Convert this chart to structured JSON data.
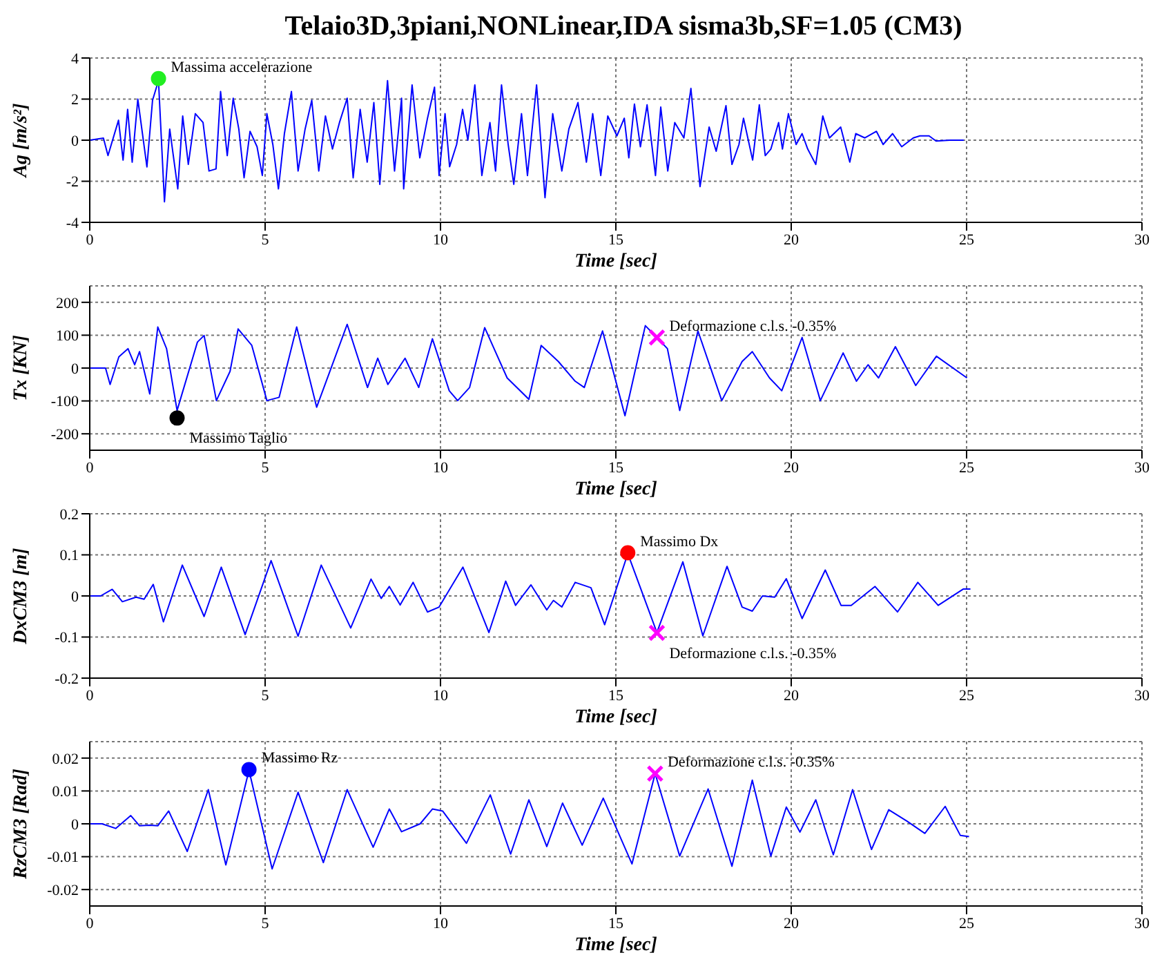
{
  "chart_data": [
    {
      "type": "line",
      "title": "Telaio3D,3piani,NONLinear,IDA sisma3b,SF=1.05 (CM3)",
      "xlabel": "Time [sec]",
      "ylabel": "Ag [m/s²]",
      "xlim": [
        0,
        30
      ],
      "xticks": [
        0,
        5,
        10,
        15,
        20,
        25,
        30
      ],
      "ylim": [
        -4,
        4
      ],
      "yticks": [
        -4,
        -2,
        0,
        2,
        4
      ],
      "grid": true,
      "series": [
        {
          "type": "line",
          "color": "#0000ff",
          "x": [
            0,
            0.39,
            0.52,
            0.82,
            0.95,
            1.08,
            1.21,
            1.37,
            1.63,
            1.79,
            1.96,
            2.13,
            2.28,
            2.51,
            2.65,
            2.81,
            3.01,
            3.23,
            3.4,
            3.6,
            3.73,
            3.92,
            4.09,
            4.25,
            4.4,
            4.57,
            4.77,
            4.92,
            5.05,
            5.22,
            5.38,
            5.55,
            5.75,
            5.94,
            6.14,
            6.33,
            6.53,
            6.72,
            6.92,
            7.12,
            7.34,
            7.51,
            7.71,
            7.91,
            8.1,
            8.27,
            8.49,
            8.69,
            8.89,
            8.95,
            9.19,
            9.41,
            9.63,
            9.83,
            9.96,
            10.13,
            10.26,
            10.46,
            10.63,
            10.78,
            10.98,
            11.18,
            11.41,
            11.57,
            11.74,
            11.93,
            12.09,
            12.31,
            12.48,
            12.74,
            12.98,
            13.2,
            13.46,
            13.66,
            13.92,
            14.16,
            14.34,
            14.57,
            14.77,
            15.03,
            15.24,
            15.37,
            15.53,
            15.7,
            15.89,
            16.13,
            16.28,
            16.48,
            16.68,
            16.94,
            17.14,
            17.4,
            17.66,
            17.86,
            18.14,
            18.31,
            18.51,
            18.64,
            18.9,
            19.09,
            19.26,
            19.42,
            19.64,
            19.75,
            19.92,
            20.14,
            20.31,
            20.47,
            20.7,
            20.9,
            21.09,
            21.41,
            21.67,
            21.84,
            22.1,
            22.43,
            22.62,
            22.89,
            23.15,
            23.48,
            23.67,
            23.93,
            24.13,
            24.52,
            24.92
          ],
          "values": [
            0,
            0.1,
            -0.75,
            0.97,
            -0.97,
            1.5,
            -1.07,
            2,
            -1.3,
            1.94,
            2.9,
            -3,
            0.54,
            -2.37,
            1.18,
            -1.18,
            1.29,
            0.86,
            -1.5,
            -1.4,
            2.37,
            -0.75,
            2.04,
            0.54,
            -1.83,
            0.43,
            -0.32,
            -1.72,
            1.29,
            -0.21,
            -2.37,
            0.32,
            2.37,
            -1.5,
            0.54,
            1.94,
            -1.5,
            1.18,
            -0.43,
            0.86,
            2.04,
            -1.83,
            1.5,
            -1.07,
            1.83,
            -2.15,
            2.9,
            -1.5,
            2.04,
            -2.37,
            2.69,
            -0.86,
            1.07,
            2.58,
            -1.72,
            1.29,
            -1.29,
            -0.21,
            1.5,
            0,
            2.69,
            -1.72,
            0.86,
            -1.5,
            2.69,
            -0.21,
            -2.15,
            1.29,
            -1.72,
            2.69,
            -2.8,
            1.29,
            -1.5,
            0.54,
            1.83,
            -1.07,
            1.29,
            -1.72,
            1.18,
            0.21,
            1.07,
            -0.86,
            1.76,
            -0.32,
            1.72,
            -1.72,
            1.61,
            -1.5,
            0.86,
            0.11,
            2.52,
            -2.26,
            0.64,
            -0.54,
            1.68,
            -1.18,
            -0.21,
            1.07,
            -0.97,
            1.72,
            -0.75,
            -0.43,
            0.86,
            -0.43,
            1.29,
            -0.21,
            0.32,
            -0.43,
            -1.18,
            1.18,
            0.11,
            0.64,
            -1.07,
            0.32,
            0.11,
            0.43,
            -0.21,
            0.32,
            -0.32,
            0.11,
            0.21,
            0.21,
            -0.04,
            0,
            0
          ]
        },
        {
          "type": "scatter",
          "color": "#22ee22",
          "marker": "circle",
          "x": [
            1.96
          ],
          "values": [
            3
          ]
        }
      ],
      "annotations": [
        {
          "text": "Massima accelerazione",
          "x": 1.96,
          "y": 3
        }
      ]
    },
    {
      "type": "line",
      "xlabel": "Time [sec]",
      "ylabel": "Tx [KN]",
      "xlim": [
        0,
        30
      ],
      "xticks": [
        0,
        5,
        10,
        15,
        20,
        25,
        30
      ],
      "ylim": [
        -250,
        250
      ],
      "yticks": [
        -200,
        -100,
        0,
        100,
        200
      ],
      "grid": true,
      "series": [
        {
          "type": "line",
          "color": "#0000ff",
          "x": [
            0,
            0.45,
            0.58,
            0.83,
            1.09,
            1.28,
            1.42,
            1.71,
            1.94,
            2.19,
            2.49,
            3.07,
            3.26,
            3.61,
            4,
            4.23,
            4.62,
            5.05,
            5.4,
            5.9,
            6.47,
            7.34,
            7.92,
            8.21,
            8.5,
            8.99,
            9.38,
            9.77,
            10.25,
            10.49,
            10.83,
            11.26,
            11.9,
            12.52,
            12.87,
            13.36,
            13.84,
            14.1,
            14.62,
            15.26,
            15.84,
            16.17,
            16.47,
            16.82,
            17.34,
            18.02,
            18.6,
            18.89,
            19.38,
            19.73,
            20.31,
            20.83,
            21.48,
            21.86,
            22.19,
            22.49,
            22.97,
            23.55,
            24.14,
            25.01
          ],
          "values": [
            0,
            0,
            -50,
            34,
            59,
            10,
            50,
            -79,
            125,
            59,
            -129,
            79,
            99,
            -99,
            -10,
            119,
            69,
            -99,
            -89,
            125,
            -119,
            133,
            -59,
            30,
            -50,
            30,
            -59,
            89,
            -69,
            -99,
            -59,
            123,
            -30,
            -95,
            69,
            20,
            -40,
            -59,
            113,
            -145,
            129,
            93,
            59,
            -129,
            113,
            -99,
            20,
            50,
            -30,
            -69,
            93,
            -99,
            46,
            -40,
            10,
            -30,
            65,
            -53,
            36,
            -30
          ]
        },
        {
          "type": "scatter",
          "color": "#000000",
          "marker": "circle",
          "x": [
            2.49
          ],
          "values": [
            -152
          ]
        },
        {
          "type": "scatter",
          "color": "#ff00ff",
          "marker": "cross",
          "x": [
            16.17
          ],
          "values": [
            93
          ]
        }
      ],
      "annotations": [
        {
          "text": "Massimo Taglio",
          "x": 2.49,
          "y": -152
        },
        {
          "text": "Deformazione c.l.s. -0.35%",
          "x": 16.17,
          "y": 93
        }
      ]
    },
    {
      "type": "line",
      "xlabel": "Time [sec]",
      "ylabel": "DxCM3 [m]",
      "xlim": [
        0,
        30
      ],
      "xticks": [
        0,
        5,
        10,
        15,
        20,
        25,
        30
      ],
      "ylim": [
        -0.2,
        0.2
      ],
      "yticks": [
        -0.2,
        -0.1,
        0,
        0.1,
        0.2
      ],
      "grid": true,
      "series": [
        {
          "type": "line",
          "color": "#0000ff",
          "x": [
            0,
            0.31,
            0.64,
            0.93,
            1.32,
            1.55,
            1.81,
            2.1,
            2.64,
            3.26,
            3.75,
            4.43,
            5.17,
            5.94,
            6.6,
            7.44,
            8.02,
            8.31,
            8.54,
            8.85,
            9.22,
            9.63,
            9.96,
            10.64,
            11.38,
            11.86,
            12.14,
            12.58,
            13.03,
            13.22,
            13.46,
            13.84,
            14.29,
            14.68,
            15.34,
            16.17,
            16.91,
            17.48,
            18.17,
            18.6,
            18.89,
            19.18,
            19.53,
            19.86,
            20.31,
            20.97,
            21.42,
            21.71,
            22.39,
            23.03,
            23.61,
            24.19,
            24.91,
            25.11
          ],
          "values": [
            0,
            0,
            0.016,
            -0.014,
            -0.003,
            -0.008,
            0.028,
            -0.063,
            0.075,
            -0.05,
            0.07,
            -0.094,
            0.086,
            -0.098,
            0.075,
            -0.078,
            0.041,
            -0.006,
            0.023,
            -0.022,
            0.033,
            -0.039,
            -0.027,
            0.07,
            -0.089,
            0.036,
            -0.023,
            0.027,
            -0.034,
            -0.011,
            -0.027,
            0.033,
            0.02,
            -0.07,
            0.103,
            -0.089,
            0.083,
            -0.097,
            0.072,
            -0.027,
            -0.037,
            0,
            -0.003,
            0.042,
            -0.055,
            0.063,
            -0.023,
            -0.023,
            0.023,
            -0.039,
            0.033,
            -0.023,
            0.017,
            0.017
          ]
        },
        {
          "type": "scatter",
          "color": "#ff0000",
          "marker": "circle",
          "x": [
            15.34
          ],
          "values": [
            0.105
          ]
        },
        {
          "type": "scatter",
          "color": "#ff00ff",
          "marker": "cross",
          "x": [
            16.17
          ],
          "values": [
            -0.09
          ]
        }
      ],
      "annotations": [
        {
          "text": "Massimo Dx",
          "x": 15.34,
          "y": 0.105
        },
        {
          "text": "Deformazione c.l.s. -0.35%",
          "x": 16.17,
          "y": -0.09
        }
      ]
    },
    {
      "type": "line",
      "xlabel": "Time [sec]",
      "ylabel": "RzCM3 [Rad]",
      "xlim": [
        0,
        30
      ],
      "xticks": [
        0,
        5,
        10,
        15,
        20,
        25,
        30
      ],
      "ylim": [
        -0.025,
        0.025
      ],
      "yticks": [
        -0.02,
        -0.01,
        0,
        0.01,
        0.02
      ],
      "grid": true,
      "series": [
        {
          "type": "line",
          "color": "#0000ff",
          "x": [
            0,
            0.35,
            0.74,
            1.17,
            1.42,
            1.71,
            1.94,
            2.25,
            2.78,
            3.38,
            3.88,
            4.54,
            5.2,
            5.94,
            6.66,
            7.34,
            8.08,
            8.54,
            8.89,
            9.42,
            9.77,
            10.06,
            10.74,
            11.42,
            12,
            12.52,
            13.03,
            13.48,
            14.04,
            14.64,
            15.46,
            16.12,
            16.82,
            17.63,
            18.31,
            18.89,
            19.42,
            19.86,
            20.25,
            20.7,
            21.2,
            21.75,
            22.29,
            22.78,
            23.3,
            23.81,
            24.39,
            24.82,
            25.07
          ],
          "values": [
            0,
            0,
            -0.0014,
            0.0025,
            -0.0006,
            -0.0004,
            -0.0006,
            0.0039,
            -0.0084,
            0.0104,
            -0.0125,
            0.0163,
            -0.0137,
            0.0096,
            -0.0118,
            0.0104,
            -0.0071,
            0.0045,
            -0.0024,
            0,
            0.0045,
            0.0039,
            -0.0059,
            0.0088,
            -0.0092,
            0.0073,
            -0.0069,
            0.0063,
            -0.0065,
            0.0078,
            -0.0122,
            0.0153,
            -0.0098,
            0.0106,
            -0.0129,
            0.0133,
            -0.0098,
            0.0051,
            -0.0025,
            0.0073,
            -0.0094,
            0.0104,
            -0.0078,
            0.0043,
            0.0008,
            -0.0029,
            0.0053,
            -0.0035,
            -0.0039
          ]
        },
        {
          "type": "scatter",
          "color": "#0000ff",
          "marker": "circle",
          "x": [
            4.54
          ],
          "values": [
            0.0165
          ]
        },
        {
          "type": "scatter",
          "color": "#ff00ff",
          "marker": "cross",
          "x": [
            16.12
          ],
          "values": [
            0.0153
          ]
        }
      ],
      "annotations": [
        {
          "text": "Massimo Rz",
          "x": 4.54,
          "y": 0.0165
        },
        {
          "text": "Deformazione c.l.s. -0.35%",
          "x": 16.12,
          "y": 0.0153
        }
      ]
    }
  ]
}
